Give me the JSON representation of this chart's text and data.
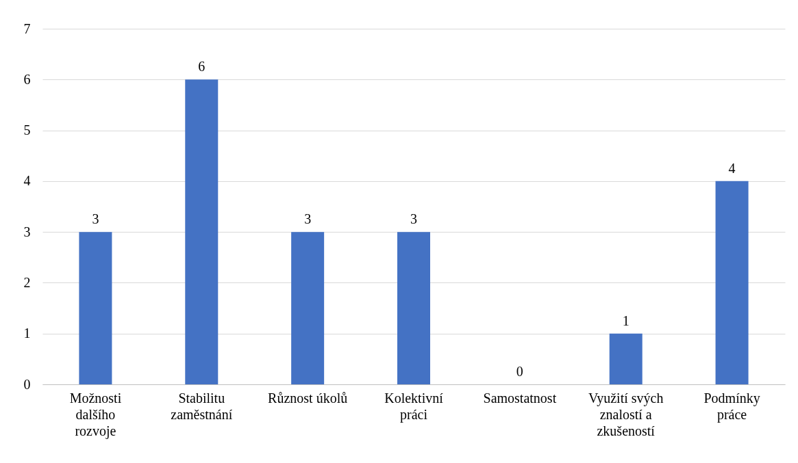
{
  "chart_data": {
    "type": "bar",
    "categories": [
      "Možnosti dalšího rozvoje",
      "Stabilitu zaměstnání",
      "Různost úkolů",
      "Kolektivní práci",
      "Samostatnost",
      "Využití svých znalostí a zkušeností",
      "Podmínky práce"
    ],
    "values": [
      3,
      6,
      3,
      3,
      0,
      1,
      4
    ],
    "color": "#4472c4",
    "ylim": [
      0,
      7
    ],
    "yticks": [
      0,
      1,
      2,
      3,
      4,
      5,
      6,
      7
    ],
    "grid": "y",
    "data_labels": true
  }
}
